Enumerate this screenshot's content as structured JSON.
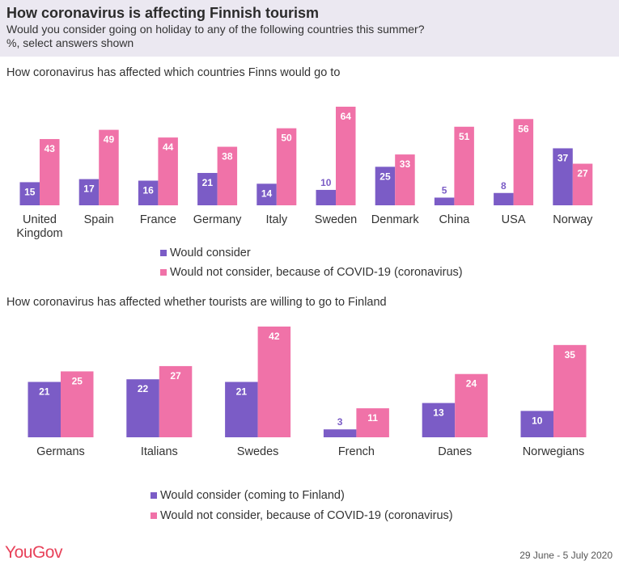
{
  "header": {
    "title": "How coronavirus is affecting Finnish tourism",
    "subtitle": "Would you consider going on holiday to any of the following countries this summer?",
    "note": "%, select answers shown"
  },
  "colors": {
    "consider": "#7b5cc6",
    "not_consider": "#f072a8",
    "header_bg": "#ebe8f1",
    "brand": "#e8425a"
  },
  "chart_data": [
    {
      "type": "bar",
      "title": "How coronavirus has affected which countries Finns would go to",
      "categories": [
        "United Kingdom",
        "Spain",
        "France",
        "Germany",
        "Italy",
        "Sweden",
        "Denmark",
        "China",
        "USA",
        "Norway"
      ],
      "series": [
        {
          "name": "Would consider",
          "values": [
            15,
            17,
            16,
            21,
            14,
            10,
            25,
            5,
            8,
            37
          ]
        },
        {
          "name": "Would not consider, because of COVID-19 (coronavirus)",
          "values": [
            43,
            49,
            44,
            38,
            50,
            64,
            33,
            51,
            56,
            27
          ]
        }
      ],
      "ylim": [
        0,
        64
      ],
      "grid": false,
      "legend": "bottom"
    },
    {
      "type": "bar",
      "title": "How coronavirus has affected whether tourists are willing to go to Finland",
      "categories": [
        "Germans",
        "Italians",
        "Swedes",
        "French",
        "Danes",
        "Norwegians"
      ],
      "series": [
        {
          "name": "Would consider (coming to Finland)",
          "values": [
            21,
            22,
            21,
            3,
            13,
            10
          ]
        },
        {
          "name": "Would not consider, because of COVID-19 (coronavirus)",
          "values": [
            25,
            27,
            42,
            11,
            24,
            35
          ]
        }
      ],
      "ylim": [
        0,
        42
      ],
      "grid": false,
      "legend": "bottom"
    }
  ],
  "footer": {
    "logo": "YouGov",
    "date": "29 June - 5 July 2020"
  }
}
